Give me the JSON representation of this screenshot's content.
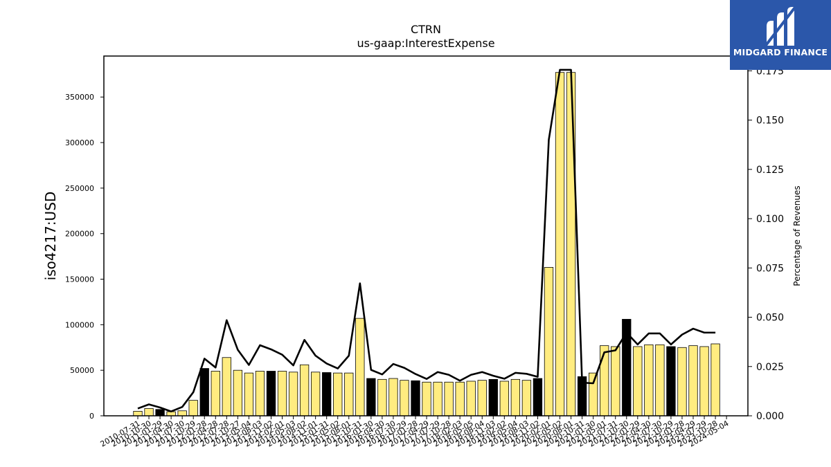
{
  "chart_data": {
    "type": "bar",
    "title": "CTRN",
    "subtitle": "us-gaap:InterestExpense",
    "ylabel": "iso4217:USD",
    "y2label": "Percentage of Revenues",
    "ylim": [
      0,
      395000
    ],
    "y2lim": [
      0,
      0.1825
    ],
    "yticks": [
      0,
      50000,
      100000,
      150000,
      200000,
      250000,
      300000,
      350000
    ],
    "y2ticks": [
      0.0,
      0.025,
      0.05,
      0.075,
      0.1,
      0.125,
      0.15,
      0.175
    ],
    "y2tick_labels": [
      "0.000",
      "0.025",
      "0.050",
      "0.075",
      "0.100",
      "0.125",
      "0.150",
      "0.175"
    ],
    "categories": [
      "2010-07-31",
      "2010-10-30",
      "2011-01-29",
      "2011-04-30",
      "2011-07-30",
      "2011-10-29",
      "2012-01-28",
      "2012-04-28",
      "2012-07-28",
      "2012-10-27",
      "2013-05-04",
      "2013-08-03",
      "2013-11-02",
      "2014-02-01",
      "2014-05-03",
      "2014-08-02",
      "2014-11-01",
      "2015-01-31",
      "2015-05-02",
      "2015-08-01",
      "2015-10-31",
      "2016-01-30",
      "2016-04-30",
      "2016-07-30",
      "2016-10-29",
      "2017-01-28",
      "2017-04-29",
      "2017-07-29",
      "2017-10-28",
      "2018-02-03",
      "2018-05-05",
      "2018-08-04",
      "2018-11-03",
      "2019-02-02",
      "2019-05-04",
      "2019-08-03",
      "2019-11-02",
      "2020-02-01",
      "2020-05-02",
      "2020-08-01",
      "2020-10-31",
      "2021-01-30",
      "2021-05-01",
      "2021-07-31",
      "2021-10-30",
      "2022-01-29",
      "2022-04-30",
      "2022-07-30",
      "2022-10-29",
      "2023-01-28",
      "2023-04-29",
      "2023-07-29",
      "2023-10-28",
      "2024-05-04"
    ],
    "x_tick_labels": [
      "2010-07-31",
      "2010-10-30",
      "2011-01-29",
      "2011-04-30",
      "2011-07-30",
      "2011-10-29",
      "2012-01-28",
      "2012-04-28",
      "2012-07-28",
      "2012-10-27",
      "2013-05-04",
      "2013-08-03",
      "2013-11-02",
      "2014-02-01",
      "2014-05-03",
      "2014-08-02",
      "2014-11-01",
      "2015-01-31",
      "2015-05-02",
      "2015-08-01",
      "2015-10-31",
      "2016-01-30",
      "2016-04-30",
      "2016-07-30",
      "2016-10-29",
      "2017-01-28",
      "2017-04-29",
      "2017-07-29",
      "2017-10-28",
      "2018-02-03",
      "2018-05-05",
      "2018-08-04",
      "2018-11-03",
      "2019-02-02",
      "2019-05-04",
      "2019-08-03",
      "2019-11-02",
      "2020-02-01",
      "2020-05-02",
      "2020-08-01",
      "2020-10-31",
      "2021-01-30",
      "2021-05-01",
      "2021-07-31",
      "2021-10-30",
      "2022-01-29",
      "2022-04-30",
      "2022-07-30",
      "2022-10-29",
      "2023-01-28",
      "2023-04-29",
      "2023-07-29",
      "2023-10-28",
      "2024-05-04"
    ],
    "values": [
      5000,
      8000,
      7000,
      4500,
      5500,
      17000,
      52000,
      49000,
      64000,
      50000,
      47000,
      49000,
      49000,
      49000,
      48000,
      56000,
      48000,
      47500,
      47000,
      47000,
      107000,
      41000,
      40000,
      41000,
      39000,
      38500,
      37000,
      37000,
      37000,
      37000,
      38000,
      39000,
      40000,
      38000,
      40000,
      39000,
      41000,
      163000,
      377000,
      377000,
      43000,
      47000,
      77000,
      76000,
      106000,
      76000,
      78000,
      78000,
      76000,
      75000,
      77000,
      76000,
      79000,
      0
    ],
    "highlight": [
      false,
      false,
      true,
      false,
      false,
      false,
      true,
      false,
      false,
      false,
      false,
      false,
      true,
      false,
      false,
      false,
      false,
      true,
      false,
      false,
      false,
      true,
      false,
      false,
      false,
      true,
      false,
      false,
      false,
      false,
      false,
      false,
      true,
      false,
      false,
      false,
      true,
      false,
      false,
      false,
      true,
      false,
      false,
      false,
      true,
      false,
      false,
      false,
      true,
      false,
      false,
      false,
      false,
      false
    ],
    "line_values": [
      0.0037,
      0.0058,
      0.0042,
      0.0022,
      0.0045,
      0.012,
      0.029,
      0.0245,
      0.0485,
      0.0335,
      0.0258,
      0.0358,
      0.0337,
      0.031,
      0.0256,
      0.0385,
      0.0305,
      0.0265,
      0.024,
      0.0305,
      0.0672,
      0.0233,
      0.021,
      0.0263,
      0.0243,
      0.0212,
      0.0187,
      0.0222,
      0.0208,
      0.0178,
      0.0208,
      0.0222,
      0.0203,
      0.0188,
      0.0218,
      0.0213,
      0.0198,
      0.14,
      0.1755,
      0.1755,
      0.0168,
      0.0165,
      0.0322,
      0.0332,
      0.0422,
      0.0362,
      0.0418,
      0.0418,
      0.0362,
      0.0412,
      0.0442,
      0.0422,
      0.0422,
      null
    ],
    "colors": {
      "bar": "#ffec80",
      "bar_highlight": "#000000",
      "line": "#000000"
    },
    "legend": "none",
    "grid": false
  },
  "logo": {
    "text": "MIDGARD FINANCE",
    "bg": "#2b57aa"
  }
}
